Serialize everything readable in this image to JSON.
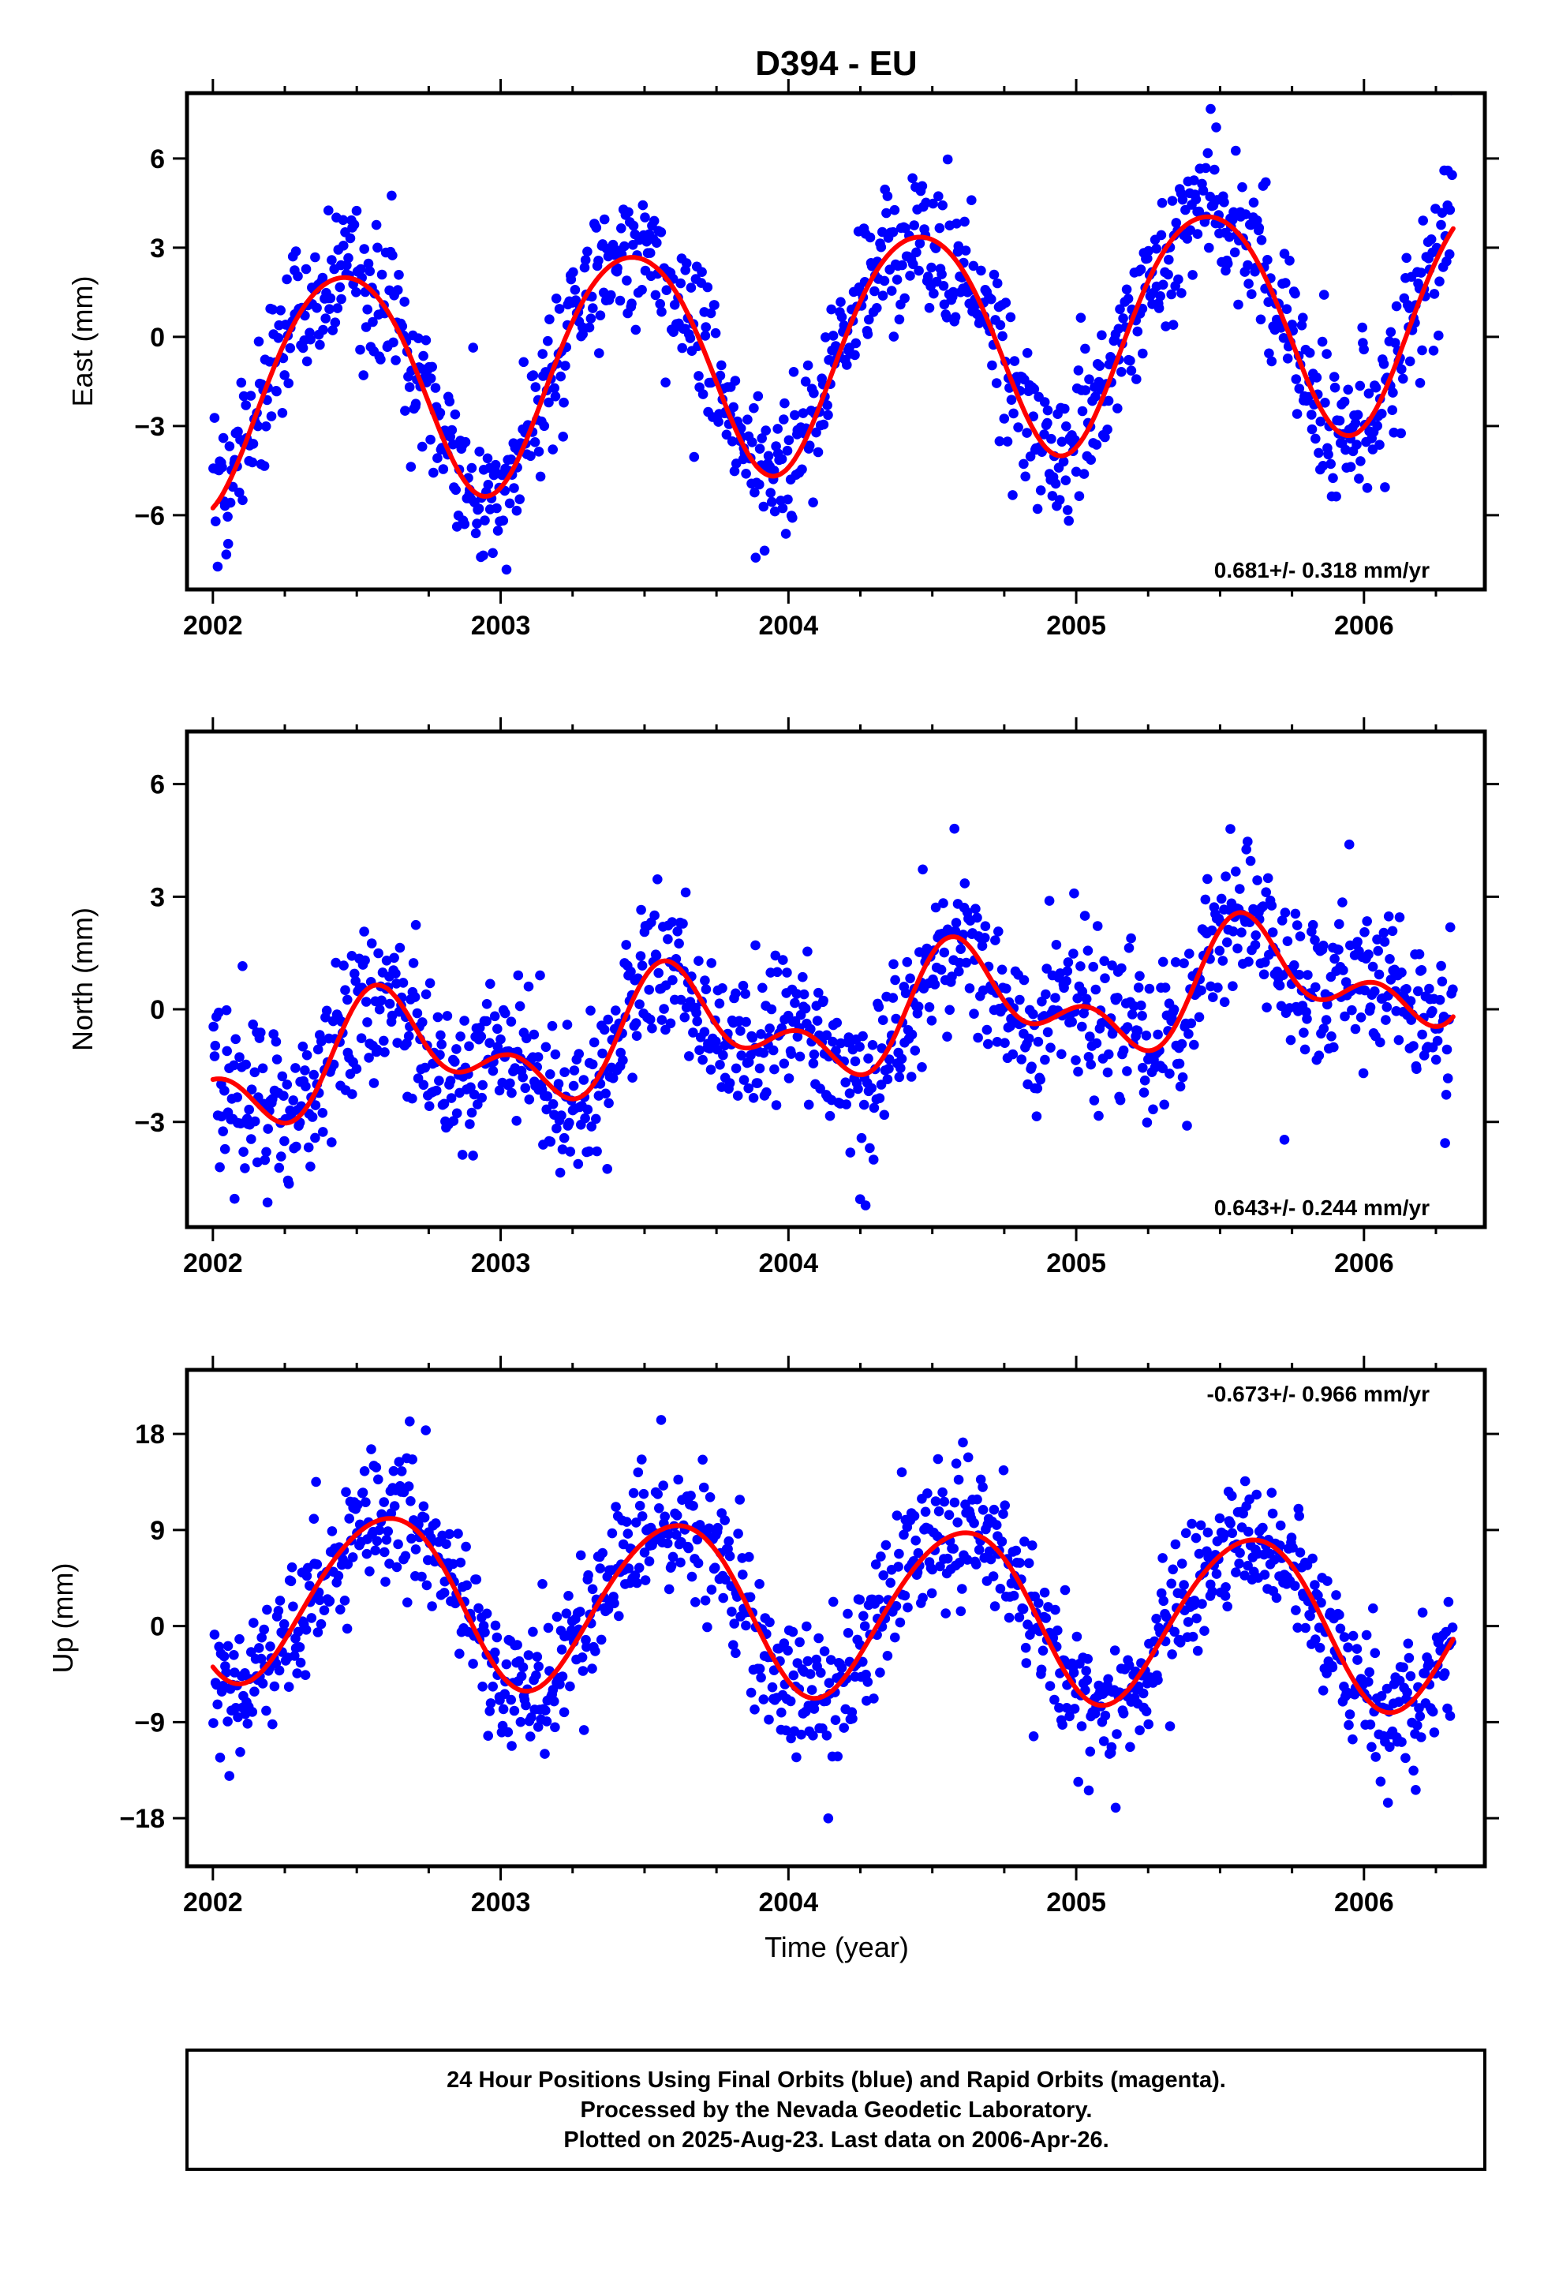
{
  "page_title": "D394 - EU",
  "caption_lines": [
    "24 Hour Positions Using Final Orbits (blue) and Rapid Orbits (magenta).",
    "Processed by the Nevada Geodetic Laboratory.",
    "Plotted on 2025-Aug-23. Last data on 2006-Apr-26."
  ],
  "colors": {
    "points": "#0000ff",
    "fit": "#ff0000",
    "frame": "#000000"
  },
  "chart_data": [
    {
      "type": "scatter",
      "title": "",
      "xlabel": "",
      "ylabel": "East (mm)",
      "xlim": [
        2001.91,
        2006.42
      ],
      "ylim": [
        -8.5,
        8.2
      ],
      "x_ticks": [
        "2002",
        "2003",
        "2004",
        "2005",
        "2006"
      ],
      "y_ticks": [
        "6",
        "3",
        "0",
        "−3",
        "−6"
      ],
      "y_tick_values": [
        6,
        3,
        0,
        -3,
        -6
      ],
      "rate_label": "0.681+/- 0.318 mm/yr",
      "rate_position": "bottom-right",
      "series": [
        {
          "name": "Final Orbits (blue)",
          "kind": "points",
          "x_start": 2002.0,
          "x_end": 2006.31,
          "n": 1150,
          "offset": -0.35,
          "trend": 0.681,
          "amp_annual": 3.85,
          "phase_annual_year": 2002.45,
          "amp_semiannual": 0.35,
          "phase_semiannual_year": 2002.2,
          "scatter": 1.2
        },
        {
          "name": "Fit",
          "kind": "curve",
          "x_start": 2002.0,
          "x_end": 2006.31,
          "offset": -0.35,
          "trend": 0.681,
          "amp_annual": 3.85,
          "phase_annual_year": 2002.45,
          "amp_semiannual": 0.35,
          "phase_semiannual_year": 2002.2
        }
      ]
    },
    {
      "type": "scatter",
      "title": "",
      "xlabel": "",
      "ylabel": "North (mm)",
      "xlim": [
        2001.91,
        2006.42
      ],
      "ylim": [
        -5.8,
        7.4
      ],
      "x_ticks": [
        "2002",
        "2003",
        "2004",
        "2005",
        "2006"
      ],
      "y_ticks": [
        "6",
        "3",
        "0",
        "−3"
      ],
      "y_tick_values": [
        6,
        3,
        0,
        -3
      ],
      "rate_label": "0.643+/- 0.244 mm/yr",
      "rate_position": "bottom-right",
      "series": [
        {
          "name": "Final Orbits (blue)",
          "kind": "points",
          "x_start": 2002.0,
          "x_end": 2006.31,
          "n": 1150,
          "offset": -0.3,
          "trend": 0.643,
          "amp_annual": 1.2,
          "phase_annual_year": 2002.62,
          "amp_semiannual": 0.85,
          "phase_semiannual_year": 2002.55,
          "scatter": 1.0
        },
        {
          "name": "Fit",
          "kind": "curve",
          "x_start": 2002.0,
          "x_end": 2006.31,
          "offset": -0.3,
          "trend": 0.643,
          "amp_annual": 1.2,
          "phase_annual_year": 2002.62,
          "amp_semiannual": 0.85,
          "phase_semiannual_year": 2002.55
        }
      ]
    },
    {
      "type": "scatter",
      "title": "",
      "xlabel": "Time (year)",
      "ylabel": "Up (mm)",
      "xlim": [
        2001.91,
        2006.42
      ],
      "ylim": [
        -22.5,
        24.0
      ],
      "x_ticks": [
        "2002",
        "2003",
        "2004",
        "2005",
        "2006"
      ],
      "y_ticks": [
        "18",
        "9",
        "0",
        "−9",
        "−18"
      ],
      "y_tick_values": [
        18,
        9,
        0,
        -9,
        -18
      ],
      "rate_label": "-0.673+/- 0.966 mm/yr",
      "rate_position": "top-right",
      "series": [
        {
          "name": "Final Orbits (blue)",
          "kind": "points",
          "x_start": 2002.0,
          "x_end": 2006.31,
          "n": 1150,
          "offset": 1.6,
          "trend": -0.673,
          "amp_annual": 7.9,
          "phase_annual_year": 2002.6,
          "amp_semiannual": 0.6,
          "phase_semiannual_year": 2002.3,
          "scatter": 3.2
        },
        {
          "name": "Fit",
          "kind": "curve",
          "x_start": 2002.0,
          "x_end": 2006.31,
          "offset": 1.6,
          "trend": -0.673,
          "amp_annual": 7.9,
          "phase_annual_year": 2002.6,
          "amp_semiannual": 0.6,
          "phase_semiannual_year": 2002.3
        }
      ]
    }
  ]
}
